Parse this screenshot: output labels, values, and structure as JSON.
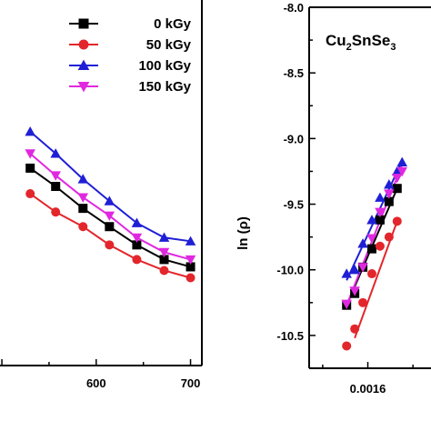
{
  "chart_data": [
    {
      "type": "line",
      "panel": "left",
      "xlabel": "",
      "ylabel": "",
      "x_ticks": [
        "600",
        "700"
      ],
      "xlim": [
        498,
        712
      ],
      "ylim": [
        0,
        1
      ],
      "x": [
        530,
        557,
        586,
        614,
        643,
        672,
        700
      ],
      "legend": {
        "position": "top-right"
      },
      "series": [
        {
          "name": "0 kGy",
          "color": "#000000",
          "marker": "square",
          "values": [
            0.54,
            0.49,
            0.43,
            0.38,
            0.33,
            0.29,
            0.27
          ]
        },
        {
          "name": "50 kGy",
          "color": "#e3262b",
          "marker": "circle",
          "values": [
            0.47,
            0.42,
            0.38,
            0.33,
            0.29,
            0.26,
            0.24
          ]
        },
        {
          "name": "100 kGy",
          "color": "#1f1fd6",
          "marker": "triangle-up",
          "values": [
            0.64,
            0.58,
            0.51,
            0.45,
            0.39,
            0.35,
            0.34
          ]
        },
        {
          "name": "150 kGy",
          "color": "#e028e0",
          "marker": "triangle-down",
          "values": [
            0.58,
            0.52,
            0.46,
            0.41,
            0.35,
            0.31,
            0.29
          ]
        }
      ]
    },
    {
      "type": "scatter",
      "panel": "right",
      "annotation_parts": [
        {
          "text": "Cu",
          "sub": false
        },
        {
          "text": "2",
          "sub": true
        },
        {
          "text": "SnSe",
          "sub": false
        },
        {
          "text": "3",
          "sub": true
        }
      ],
      "xlabel": "",
      "ylabel": "ln (ρ)",
      "xlim": [
        0.00147,
        0.00174
      ],
      "ylim": [
        -10.75,
        -8.0
      ],
      "x_ticks": [
        {
          "value": 0.0016,
          "label": "0.0016"
        }
      ],
      "y_ticks": [
        {
          "value": -8.0,
          "label": "-8.0"
        },
        {
          "value": -8.5,
          "label": "-8.5"
        },
        {
          "value": -9.0,
          "label": "-9.0"
        },
        {
          "value": -9.5,
          "label": "-9.5"
        },
        {
          "value": -10.0,
          "label": "-10.0"
        },
        {
          "value": -10.5,
          "label": "-10.5"
        }
      ],
      "series": [
        {
          "name": "0 kGy",
          "color": "#000000",
          "marker": "square",
          "x": [
            0.001553,
            0.001571,
            0.001589,
            0.001609,
            0.001627,
            0.001647,
            0.001665
          ],
          "values": [
            -10.27,
            -10.18,
            -9.98,
            -9.84,
            -9.62,
            -9.48,
            -9.38
          ],
          "fit": [
            [
              0.001553,
              -10.27
            ],
            [
              0.001665,
              -9.38
            ]
          ]
        },
        {
          "name": "50 kGy",
          "color": "#e3262b",
          "marker": "circle",
          "x": [
            0.001553,
            0.001571,
            0.001589,
            0.001609,
            0.001627,
            0.001647,
            0.001665
          ],
          "values": [
            -10.58,
            -10.45,
            -10.25,
            -10.03,
            -9.82,
            -9.75,
            -9.63
          ],
          "fit": [
            [
              0.001571,
              -10.52
            ],
            [
              0.001665,
              -9.63
            ]
          ]
        },
        {
          "name": "100 kGy",
          "color": "#1f1fd6",
          "marker": "triangle-up",
          "x": [
            0.001553,
            0.001571,
            0.001589,
            0.001609,
            0.001627,
            0.001647,
            0.001665,
            0.001676
          ],
          "values": [
            -10.03,
            -10.0,
            -9.8,
            -9.62,
            -9.45,
            -9.35,
            -9.25,
            -9.18
          ],
          "fit": [
            [
              0.001553,
              -10.08
            ],
            [
              0.001676,
              -9.17
            ]
          ]
        },
        {
          "name": "150 kGy",
          "color": "#e028e0",
          "marker": "triangle-down",
          "x": [
            0.001553,
            0.001571,
            0.001589,
            0.001609,
            0.001627,
            0.001647,
            0.001665,
            0.001676
          ],
          "values": [
            -10.26,
            -10.16,
            -9.98,
            -9.76,
            -9.56,
            -9.42,
            -9.3,
            -9.25
          ],
          "fit": [
            [
              0.001553,
              -10.27
            ],
            [
              0.001676,
              -9.2
            ]
          ]
        }
      ]
    }
  ]
}
